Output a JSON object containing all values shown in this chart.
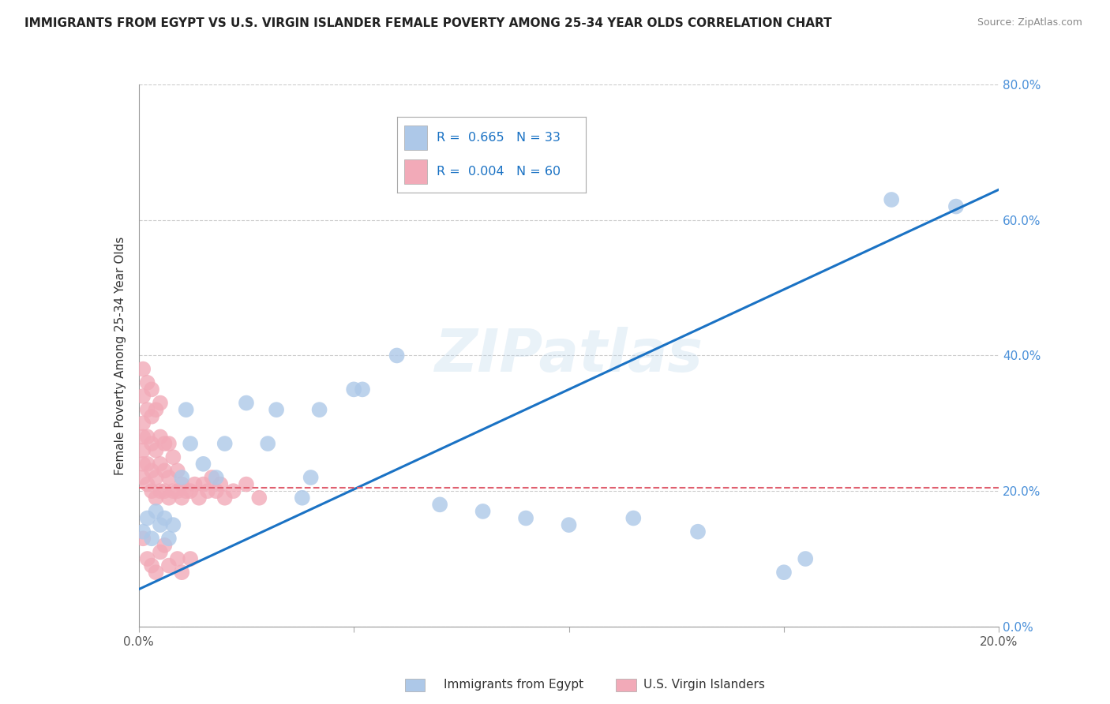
{
  "title": "IMMIGRANTS FROM EGYPT VS U.S. VIRGIN ISLANDER FEMALE POVERTY AMONG 25-34 YEAR OLDS CORRELATION CHART",
  "source": "Source: ZipAtlas.com",
  "ylabel": "Female Poverty Among 25-34 Year Olds",
  "xlim": [
    0.0,
    0.2
  ],
  "ylim": [
    0.0,
    0.8
  ],
  "xticks": [
    0.0,
    0.05,
    0.1,
    0.15,
    0.2
  ],
  "xtick_labels": [
    "0.0%",
    "",
    "",
    "",
    "20.0%"
  ],
  "yticks": [
    0.0,
    0.2,
    0.4,
    0.6,
    0.8
  ],
  "ytick_labels_right": [
    "0.0%",
    "20.0%",
    "40.0%",
    "60.0%",
    "80.0%"
  ],
  "blue_r": "0.665",
  "blue_n": "33",
  "pink_r": "0.004",
  "pink_n": "60",
  "blue_color": "#adc8e8",
  "pink_color": "#f2aab8",
  "blue_line_color": "#1a72c4",
  "pink_line_color": "#e06070",
  "legend_label_blue": "Immigrants from Egypt",
  "legend_label_pink": "U.S. Virgin Islanders",
  "watermark": "ZIPatlas",
  "blue_line_x0": 0.0,
  "blue_line_y0": 0.055,
  "blue_line_x1": 0.2,
  "blue_line_y1": 0.645,
  "pink_line_y": 0.205,
  "blue_dots_x": [
    0.001,
    0.002,
    0.003,
    0.004,
    0.005,
    0.006,
    0.007,
    0.008,
    0.01,
    0.011,
    0.012,
    0.015,
    0.018,
    0.02,
    0.025,
    0.03,
    0.032,
    0.038,
    0.04,
    0.042,
    0.05,
    0.052,
    0.06,
    0.07,
    0.08,
    0.09,
    0.1,
    0.115,
    0.13,
    0.15,
    0.155,
    0.175,
    0.19
  ],
  "blue_dots_y": [
    0.14,
    0.16,
    0.13,
    0.17,
    0.15,
    0.16,
    0.13,
    0.15,
    0.22,
    0.32,
    0.27,
    0.24,
    0.22,
    0.27,
    0.33,
    0.27,
    0.32,
    0.19,
    0.22,
    0.32,
    0.35,
    0.35,
    0.4,
    0.18,
    0.17,
    0.16,
    0.15,
    0.16,
    0.14,
    0.08,
    0.1,
    0.63,
    0.62
  ],
  "pink_dots_x": [
    0.001,
    0.001,
    0.001,
    0.001,
    0.001,
    0.001,
    0.001,
    0.002,
    0.002,
    0.002,
    0.002,
    0.002,
    0.003,
    0.003,
    0.003,
    0.003,
    0.003,
    0.004,
    0.004,
    0.004,
    0.004,
    0.005,
    0.005,
    0.005,
    0.005,
    0.006,
    0.006,
    0.006,
    0.007,
    0.007,
    0.007,
    0.008,
    0.008,
    0.009,
    0.009,
    0.01,
    0.01,
    0.011,
    0.012,
    0.013,
    0.014,
    0.015,
    0.016,
    0.017,
    0.018,
    0.019,
    0.02,
    0.022,
    0.025,
    0.028,
    0.001,
    0.002,
    0.003,
    0.004,
    0.005,
    0.006,
    0.007,
    0.009,
    0.01,
    0.012
  ],
  "pink_dots_y": [
    0.22,
    0.24,
    0.26,
    0.28,
    0.3,
    0.34,
    0.38,
    0.21,
    0.24,
    0.28,
    0.32,
    0.36,
    0.2,
    0.23,
    0.27,
    0.31,
    0.35,
    0.19,
    0.22,
    0.26,
    0.32,
    0.2,
    0.24,
    0.28,
    0.33,
    0.2,
    0.23,
    0.27,
    0.19,
    0.22,
    0.27,
    0.2,
    0.25,
    0.2,
    0.23,
    0.19,
    0.21,
    0.2,
    0.2,
    0.21,
    0.19,
    0.21,
    0.2,
    0.22,
    0.2,
    0.21,
    0.19,
    0.2,
    0.21,
    0.19,
    0.13,
    0.1,
    0.09,
    0.08,
    0.11,
    0.12,
    0.09,
    0.1,
    0.08,
    0.1
  ]
}
